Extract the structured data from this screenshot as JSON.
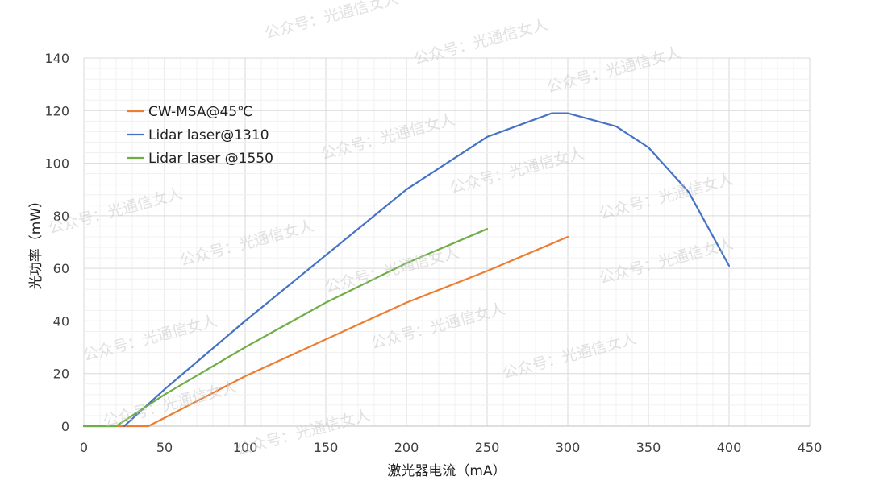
{
  "chart_data": {
    "type": "line",
    "title": "",
    "xlabel": "激光器电流（mA）",
    "ylabel": "光功率（mW）",
    "xlim": [
      0,
      450
    ],
    "ylim": [
      0,
      140
    ],
    "xticks": [
      0,
      50,
      100,
      150,
      200,
      250,
      300,
      350,
      400,
      450
    ],
    "yticks": [
      0,
      20,
      40,
      60,
      80,
      100,
      120,
      140
    ],
    "grid": true,
    "legend_position": "top-left",
    "series": [
      {
        "name": "CW-MSA@45℃",
        "color": "#ED7D31",
        "points": [
          [
            0,
            0
          ],
          [
            40,
            0
          ],
          [
            100,
            19
          ],
          [
            150,
            33
          ],
          [
            200,
            47
          ],
          [
            250,
            59
          ],
          [
            300,
            72
          ]
        ]
      },
      {
        "name": "Lidar laser@1310",
        "color": "#4472C4",
        "points": [
          [
            25,
            0
          ],
          [
            50,
            14
          ],
          [
            100,
            40
          ],
          [
            150,
            65
          ],
          [
            200,
            90
          ],
          [
            250,
            110
          ],
          [
            290,
            119
          ],
          [
            300,
            119
          ],
          [
            330,
            114
          ],
          [
            350,
            106
          ],
          [
            375,
            89
          ],
          [
            400,
            61
          ]
        ]
      },
      {
        "name": "Lidar laser @1550",
        "color": "#70AD47",
        "points": [
          [
            0,
            0
          ],
          [
            20,
            0
          ],
          [
            50,
            12
          ],
          [
            100,
            30
          ],
          [
            150,
            47
          ],
          [
            200,
            62
          ],
          [
            250,
            75
          ]
        ]
      }
    ]
  },
  "watermark": "公众号：光通信女人"
}
